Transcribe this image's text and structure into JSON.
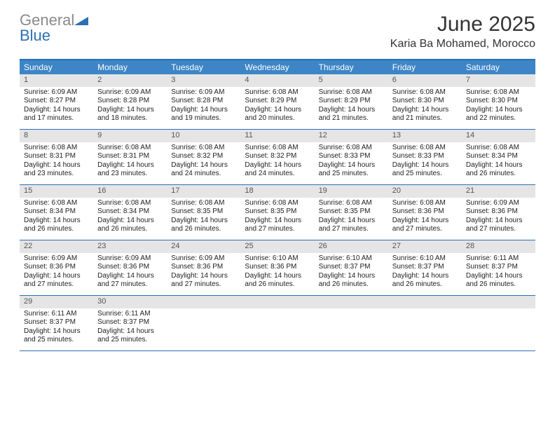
{
  "logo": {
    "text_gray": "General",
    "text_blue": "Blue"
  },
  "title": "June 2025",
  "location": "Karia Ba Mohamed, Morocco",
  "colors": {
    "header_bg": "#3d85c6",
    "header_text": "#ffffff",
    "border": "#2d6fb5",
    "daynum_bg": "#e5e5e5",
    "daynum_text": "#555555",
    "body_text": "#222222",
    "logo_gray": "#8a8a8a",
    "logo_blue": "#2d6fb5"
  },
  "day_names": [
    "Sunday",
    "Monday",
    "Tuesday",
    "Wednesday",
    "Thursday",
    "Friday",
    "Saturday"
  ],
  "weeks": [
    [
      {
        "n": "1",
        "sr": "6:09 AM",
        "ss": "8:27 PM",
        "dl": "14 hours and 17 minutes."
      },
      {
        "n": "2",
        "sr": "6:09 AM",
        "ss": "8:28 PM",
        "dl": "14 hours and 18 minutes."
      },
      {
        "n": "3",
        "sr": "6:09 AM",
        "ss": "8:28 PM",
        "dl": "14 hours and 19 minutes."
      },
      {
        "n": "4",
        "sr": "6:08 AM",
        "ss": "8:29 PM",
        "dl": "14 hours and 20 minutes."
      },
      {
        "n": "5",
        "sr": "6:08 AM",
        "ss": "8:29 PM",
        "dl": "14 hours and 21 minutes."
      },
      {
        "n": "6",
        "sr": "6:08 AM",
        "ss": "8:30 PM",
        "dl": "14 hours and 21 minutes."
      },
      {
        "n": "7",
        "sr": "6:08 AM",
        "ss": "8:30 PM",
        "dl": "14 hours and 22 minutes."
      }
    ],
    [
      {
        "n": "8",
        "sr": "6:08 AM",
        "ss": "8:31 PM",
        "dl": "14 hours and 23 minutes."
      },
      {
        "n": "9",
        "sr": "6:08 AM",
        "ss": "8:31 PM",
        "dl": "14 hours and 23 minutes."
      },
      {
        "n": "10",
        "sr": "6:08 AM",
        "ss": "8:32 PM",
        "dl": "14 hours and 24 minutes."
      },
      {
        "n": "11",
        "sr": "6:08 AM",
        "ss": "8:32 PM",
        "dl": "14 hours and 24 minutes."
      },
      {
        "n": "12",
        "sr": "6:08 AM",
        "ss": "8:33 PM",
        "dl": "14 hours and 25 minutes."
      },
      {
        "n": "13",
        "sr": "6:08 AM",
        "ss": "8:33 PM",
        "dl": "14 hours and 25 minutes."
      },
      {
        "n": "14",
        "sr": "6:08 AM",
        "ss": "8:34 PM",
        "dl": "14 hours and 26 minutes."
      }
    ],
    [
      {
        "n": "15",
        "sr": "6:08 AM",
        "ss": "8:34 PM",
        "dl": "14 hours and 26 minutes."
      },
      {
        "n": "16",
        "sr": "6:08 AM",
        "ss": "8:34 PM",
        "dl": "14 hours and 26 minutes."
      },
      {
        "n": "17",
        "sr": "6:08 AM",
        "ss": "8:35 PM",
        "dl": "14 hours and 26 minutes."
      },
      {
        "n": "18",
        "sr": "6:08 AM",
        "ss": "8:35 PM",
        "dl": "14 hours and 27 minutes."
      },
      {
        "n": "19",
        "sr": "6:08 AM",
        "ss": "8:35 PM",
        "dl": "14 hours and 27 minutes."
      },
      {
        "n": "20",
        "sr": "6:08 AM",
        "ss": "8:36 PM",
        "dl": "14 hours and 27 minutes."
      },
      {
        "n": "21",
        "sr": "6:09 AM",
        "ss": "8:36 PM",
        "dl": "14 hours and 27 minutes."
      }
    ],
    [
      {
        "n": "22",
        "sr": "6:09 AM",
        "ss": "8:36 PM",
        "dl": "14 hours and 27 minutes."
      },
      {
        "n": "23",
        "sr": "6:09 AM",
        "ss": "8:36 PM",
        "dl": "14 hours and 27 minutes."
      },
      {
        "n": "24",
        "sr": "6:09 AM",
        "ss": "8:36 PM",
        "dl": "14 hours and 27 minutes."
      },
      {
        "n": "25",
        "sr": "6:10 AM",
        "ss": "8:36 PM",
        "dl": "14 hours and 26 minutes."
      },
      {
        "n": "26",
        "sr": "6:10 AM",
        "ss": "8:37 PM",
        "dl": "14 hours and 26 minutes."
      },
      {
        "n": "27",
        "sr": "6:10 AM",
        "ss": "8:37 PM",
        "dl": "14 hours and 26 minutes."
      },
      {
        "n": "28",
        "sr": "6:11 AM",
        "ss": "8:37 PM",
        "dl": "14 hours and 26 minutes."
      }
    ],
    [
      {
        "n": "29",
        "sr": "6:11 AM",
        "ss": "8:37 PM",
        "dl": "14 hours and 25 minutes."
      },
      {
        "n": "30",
        "sr": "6:11 AM",
        "ss": "8:37 PM",
        "dl": "14 hours and 25 minutes."
      },
      {
        "empty": true
      },
      {
        "empty": true
      },
      {
        "empty": true
      },
      {
        "empty": true
      },
      {
        "empty": true
      }
    ]
  ],
  "labels": {
    "sunrise": "Sunrise:",
    "sunset": "Sunset:",
    "daylight": "Daylight:"
  }
}
